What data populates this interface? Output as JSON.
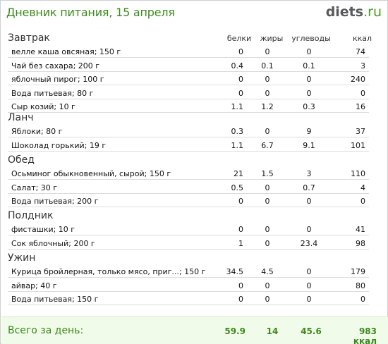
{
  "header": {
    "title": "Дневник питания, 15 апреля",
    "logo_brand": "diets",
    "logo_tld": ".ru"
  },
  "columns": {
    "protein": "белки",
    "fat": "жиры",
    "carbs": "углеводы",
    "kcal": "ккал"
  },
  "sections": [
    {
      "title": "Завтрак",
      "items": [
        {
          "name": "велле каша овсяная; 150 г",
          "protein": "0",
          "fat": "0",
          "carbs": "0",
          "kcal": "74"
        },
        {
          "name": "Чай без сахара; 200 г",
          "protein": "0.4",
          "fat": "0.1",
          "carbs": "0.1",
          "kcal": "3"
        },
        {
          "name": "яблочный пирог; 100 г",
          "protein": "0",
          "fat": "0",
          "carbs": "0",
          "kcal": "240"
        },
        {
          "name": "Вода питьевая; 80 г",
          "protein": "0",
          "fat": "0",
          "carbs": "0",
          "kcal": "0"
        },
        {
          "name": "Сыр козий; 10 г",
          "protein": "1.1",
          "fat": "1.2",
          "carbs": "0.3",
          "kcal": "16"
        }
      ]
    },
    {
      "title": "Ланч",
      "items": [
        {
          "name": "Яблоки; 80 г",
          "protein": "0.3",
          "fat": "0",
          "carbs": "9",
          "kcal": "37"
        },
        {
          "name": "Шоколад горький; 19 г",
          "protein": "1.1",
          "fat": "6.7",
          "carbs": "9.1",
          "kcal": "101"
        }
      ]
    },
    {
      "title": "Обед",
      "items": [
        {
          "name": "Осьминог обыкновенный, сырой; 150 г",
          "protein": "21",
          "fat": "1.5",
          "carbs": "3",
          "kcal": "110"
        },
        {
          "name": "Салат; 30 г",
          "protein": "0.5",
          "fat": "0",
          "carbs": "0.7",
          "kcal": "4"
        },
        {
          "name": "Вода питьевая; 200 г",
          "protein": "0",
          "fat": "0",
          "carbs": "0",
          "kcal": "0"
        }
      ]
    },
    {
      "title": "Полдник",
      "items": [
        {
          "name": "фисташки; 10 г",
          "protein": "0",
          "fat": "0",
          "carbs": "0",
          "kcal": "41"
        },
        {
          "name": "Сок яблочный; 200 г",
          "protein": "1",
          "fat": "0",
          "carbs": "23.4",
          "kcal": "98"
        }
      ]
    },
    {
      "title": "Ужин",
      "items": [
        {
          "name": "Курица бройлерная, только мясо, приг...; 150 г",
          "protein": "34.5",
          "fat": "4.5",
          "carbs": "0",
          "kcal": "179"
        },
        {
          "name": "айвар; 40 г",
          "protein": "0",
          "fat": "0",
          "carbs": "0",
          "kcal": "80"
        },
        {
          "name": "Вода питьевая; 150 г",
          "protein": "0",
          "fat": "0",
          "carbs": "0",
          "kcal": "0"
        }
      ]
    }
  ],
  "total": {
    "label": "Всего за день:",
    "protein": "59.9",
    "fat": "14",
    "carbs": "45.6",
    "kcal": "983 ккал"
  }
}
